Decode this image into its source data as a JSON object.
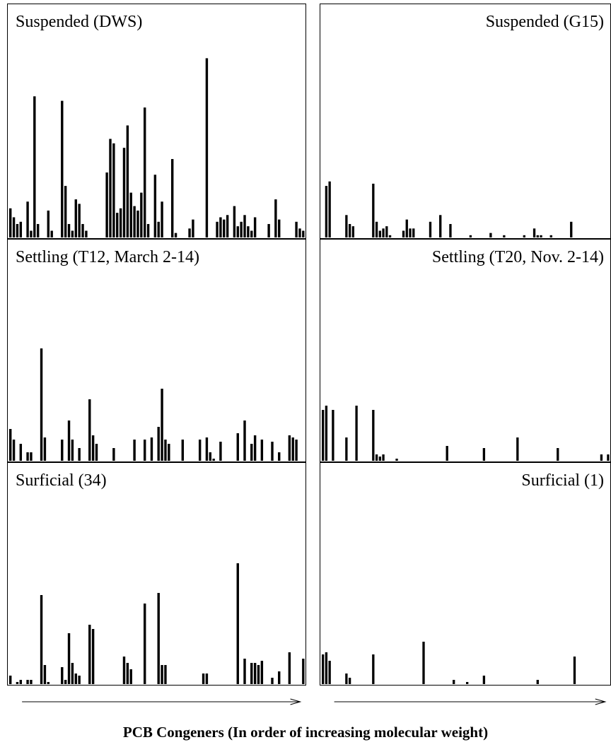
{
  "xlabel": "PCB Congeners (In order of increasing molecular weight)",
  "chart_data": [
    {
      "type": "bar",
      "title": "Suspended (DWS)",
      "ylim": [
        0,
        100
      ],
      "values": [
        13,
        9,
        6,
        7,
        0,
        16,
        3,
        63,
        6,
        0,
        0,
        12,
        3,
        0,
        0,
        61,
        23,
        6,
        3,
        17,
        15,
        6,
        3,
        0,
        0,
        0,
        0,
        0,
        29,
        44,
        42,
        11,
        13,
        40,
        50,
        20,
        14,
        12,
        20,
        58,
        6,
        0,
        28,
        7,
        16,
        0,
        0,
        35,
        2,
        0,
        0,
        0,
        4,
        8,
        0,
        0,
        0,
        80,
        0,
        0,
        7,
        9,
        8,
        10,
        0,
        14,
        5,
        7,
        10,
        5,
        3,
        9,
        0,
        0,
        0,
        6,
        0,
        17,
        8,
        0,
        0,
        0,
        0,
        7,
        4,
        3
      ]
    },
    {
      "type": "bar",
      "title": "Suspended (G15)",
      "ylim": [
        0,
        100
      ],
      "values": [
        0,
        23,
        25,
        0,
        0,
        0,
        0,
        10,
        6,
        5,
        0,
        0,
        0,
        0,
        0,
        24,
        7,
        3,
        4,
        5,
        1,
        0,
        0,
        0,
        3,
        8,
        4,
        4,
        0,
        0,
        0,
        0,
        7,
        0,
        0,
        10,
        0,
        0,
        6,
        0,
        0,
        0,
        0,
        0,
        1,
        0,
        0,
        0,
        0,
        0,
        2,
        0,
        0,
        0,
        1,
        0,
        0,
        0,
        0,
        0,
        1,
        0,
        0,
        4,
        1,
        1,
        0,
        0,
        1,
        0,
        0,
        0,
        0,
        0,
        7,
        0,
        0,
        0,
        0,
        0,
        0,
        0,
        0,
        0,
        0,
        0
      ]
    },
    {
      "type": "bar",
      "title": "Settling (T12, March 2-14)",
      "ylim": [
        0,
        100
      ],
      "values": [
        15,
        10,
        0,
        8,
        0,
        4,
        4,
        0,
        0,
        53,
        11,
        0,
        0,
        0,
        0,
        10,
        0,
        19,
        10,
        0,
        6,
        0,
        0,
        29,
        12,
        8,
        0,
        0,
        0,
        0,
        6,
        0,
        0,
        0,
        0,
        0,
        10,
        0,
        0,
        10,
        0,
        11,
        0,
        16,
        34,
        10,
        8,
        0,
        0,
        0,
        10,
        0,
        0,
        0,
        0,
        10,
        0,
        11,
        4,
        1,
        0,
        9,
        0,
        0,
        0,
        0,
        13,
        0,
        19,
        0,
        8,
        12,
        0,
        10,
        0,
        0,
        9,
        0,
        4,
        0,
        0,
        12,
        11,
        10,
        0,
        0
      ]
    },
    {
      "type": "bar",
      "title": "Settling (T20, Nov. 2-14)",
      "ylim": [
        0,
        100
      ],
      "values": [
        24,
        26,
        0,
        24,
        0,
        0,
        0,
        11,
        0,
        0,
        26,
        0,
        0,
        0,
        0,
        24,
        3,
        2,
        3,
        0,
        0,
        0,
        1,
        0,
        0,
        0,
        0,
        0,
        0,
        0,
        0,
        0,
        0,
        0,
        0,
        0,
        0,
        7,
        0,
        0,
        0,
        0,
        0,
        0,
        0,
        0,
        0,
        0,
        6,
        0,
        0,
        0,
        0,
        0,
        0,
        0,
        0,
        0,
        11,
        0,
        0,
        0,
        0,
        0,
        0,
        0,
        0,
        0,
        0,
        0,
        6,
        0,
        0,
        0,
        0,
        0,
        0,
        0,
        0,
        0,
        0,
        0,
        0,
        3,
        0,
        3
      ]
    },
    {
      "type": "bar",
      "title": "Surficial (34)",
      "ylim": [
        0,
        100
      ],
      "values": [
        4,
        0,
        1,
        2,
        0,
        2,
        2,
        0,
        0,
        42,
        9,
        1,
        0,
        0,
        0,
        8,
        2,
        24,
        10,
        5,
        4,
        0,
        0,
        28,
        26,
        0,
        0,
        0,
        0,
        0,
        0,
        0,
        0,
        13,
        10,
        7,
        0,
        0,
        0,
        38,
        0,
        0,
        0,
        43,
        9,
        9,
        0,
        0,
        0,
        0,
        0,
        0,
        0,
        0,
        0,
        0,
        5,
        5,
        0,
        0,
        0,
        0,
        0,
        0,
        0,
        0,
        57,
        0,
        12,
        0,
        10,
        10,
        9,
        11,
        0,
        0,
        3,
        0,
        6,
        0,
        0,
        15,
        0,
        0,
        0,
        12
      ]
    },
    {
      "type": "bar",
      "title": "Surficial (1)",
      "ylim": [
        0,
        100
      ],
      "values": [
        14,
        15,
        11,
        0,
        0,
        0,
        0,
        5,
        3,
        0,
        0,
        0,
        0,
        0,
        0,
        14,
        0,
        0,
        0,
        0,
        0,
        0,
        0,
        0,
        0,
        0,
        0,
        0,
        0,
        0,
        20,
        0,
        0,
        0,
        0,
        0,
        0,
        0,
        0,
        2,
        0,
        0,
        0,
        1,
        0,
        0,
        0,
        0,
        4,
        0,
        0,
        0,
        0,
        0,
        0,
        0,
        0,
        0,
        0,
        0,
        0,
        0,
        0,
        0,
        2,
        0,
        0,
        0,
        0,
        0,
        0,
        0,
        0,
        0,
        0,
        13,
        0,
        0,
        0,
        0,
        0,
        0,
        0,
        0,
        0,
        0
      ]
    }
  ],
  "arrows": [
    {
      "x_from": 0.05,
      "x_to": 0.98
    },
    {
      "x_from": 0.05,
      "x_to": 0.98
    }
  ]
}
